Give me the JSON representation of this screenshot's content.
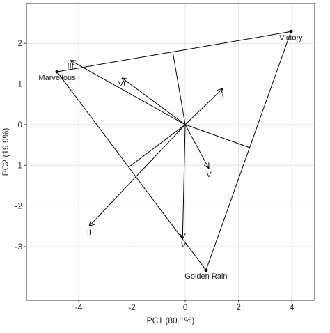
{
  "chart_data": {
    "type": "biplot",
    "x_label": "PC1 (80.1%)",
    "y_label": "PC2 (19.9%)",
    "xlim": [
      -5.96,
      4.86
    ],
    "ylim": [
      -4.32,
      2.98
    ],
    "xticks": [
      -4,
      -2,
      0,
      2,
      4
    ],
    "yticks": [
      -3,
      -2,
      -1,
      0,
      1,
      2
    ],
    "grid": true,
    "color": "#000000",
    "genotypes": {
      "names": [
        "Victory",
        "Marvellous",
        "Golden Rain"
      ],
      "x": [
        3.97,
        -4.81,
        0.78
      ],
      "y": [
        2.29,
        1.3,
        -3.58
      ]
    },
    "environments": {
      "names": [
        "I",
        "II",
        "III",
        "IV",
        "V",
        "VI"
      ],
      "x": [
        1.41,
        -3.61,
        -4.31,
        -0.1,
        0.89,
        -2.38
      ],
      "y": [
        0.89,
        -2.5,
        1.58,
        -2.81,
        -1.08,
        1.15
      ]
    }
  }
}
